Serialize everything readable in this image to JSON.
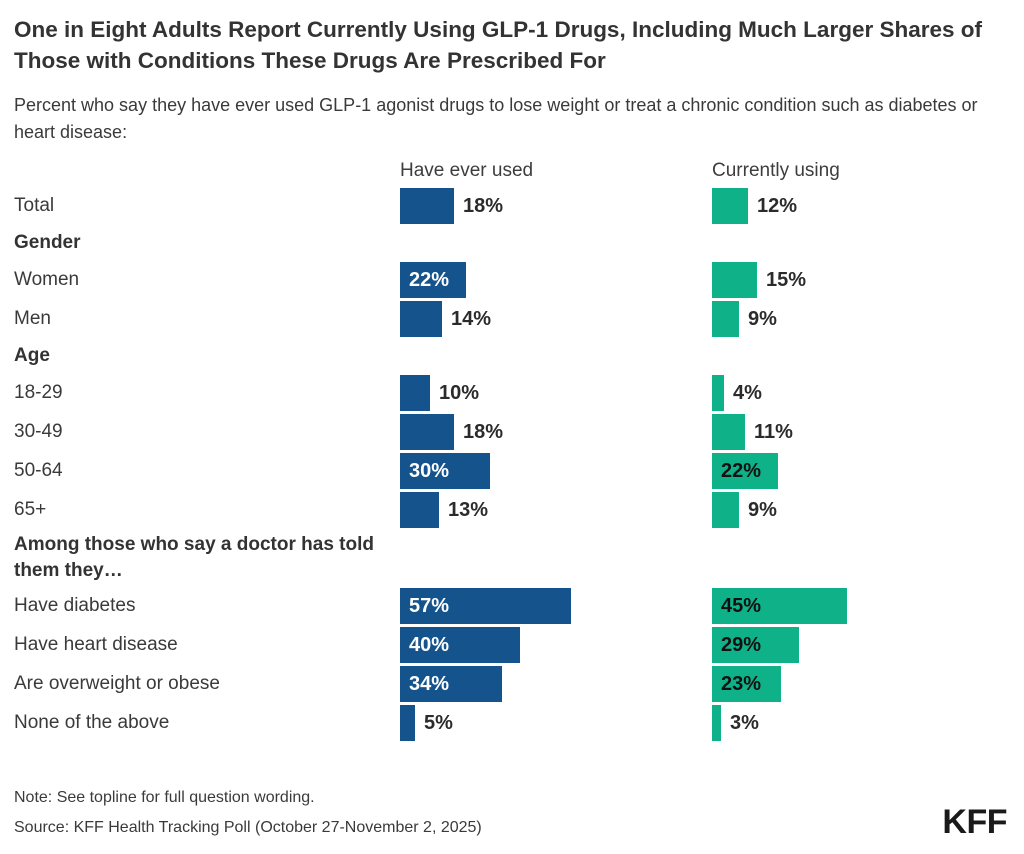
{
  "chart_data": {
    "type": "bar",
    "orientation": "horizontal",
    "title": "One in Eight Adults Report Currently Using GLP-1 Drugs, Including Much Larger Shares of Those with Conditions These Drugs Are Prescribed For",
    "subtitle": "Percent who say they have ever used GLP-1 agonist drugs to lose weight or treat a chronic condition such as diabetes or heart disease:",
    "value_unit": "percent",
    "value_suffix": "%",
    "axis_range": [
      0,
      60
    ],
    "grid": "off",
    "legend_position": "column-headers",
    "series": [
      {
        "name": "Have ever used",
        "color": "#14538c"
      },
      {
        "name": "Currently using",
        "color": "#0fb189"
      }
    ],
    "rows": [
      {
        "label": "Total",
        "values": [
          18,
          12
        ]
      },
      {
        "label": "Gender",
        "section": true
      },
      {
        "label": "Women",
        "values": [
          22,
          15
        ]
      },
      {
        "label": "Men",
        "values": [
          14,
          9
        ]
      },
      {
        "label": "Age",
        "section": true
      },
      {
        "label": "18-29",
        "values": [
          10,
          4
        ]
      },
      {
        "label": "30-49",
        "values": [
          18,
          11
        ]
      },
      {
        "label": "50-64",
        "values": [
          30,
          22
        ]
      },
      {
        "label": "65+",
        "values": [
          13,
          9
        ]
      },
      {
        "label": "Among those who say a doctor has told them they…",
        "section": true,
        "two_line": true
      },
      {
        "label": "Have diabetes",
        "values": [
          57,
          45
        ]
      },
      {
        "label": "Have heart disease",
        "values": [
          40,
          29
        ]
      },
      {
        "label": "Are overweight or obese",
        "values": [
          34,
          23
        ]
      },
      {
        "label": "None of the above",
        "values": [
          5,
          3
        ]
      }
    ]
  },
  "footer": {
    "note": "Note: See topline for full question wording.",
    "source": "Source: KFF Health Tracking Poll (October 27-November 2, 2025)",
    "logo": "KFF"
  }
}
